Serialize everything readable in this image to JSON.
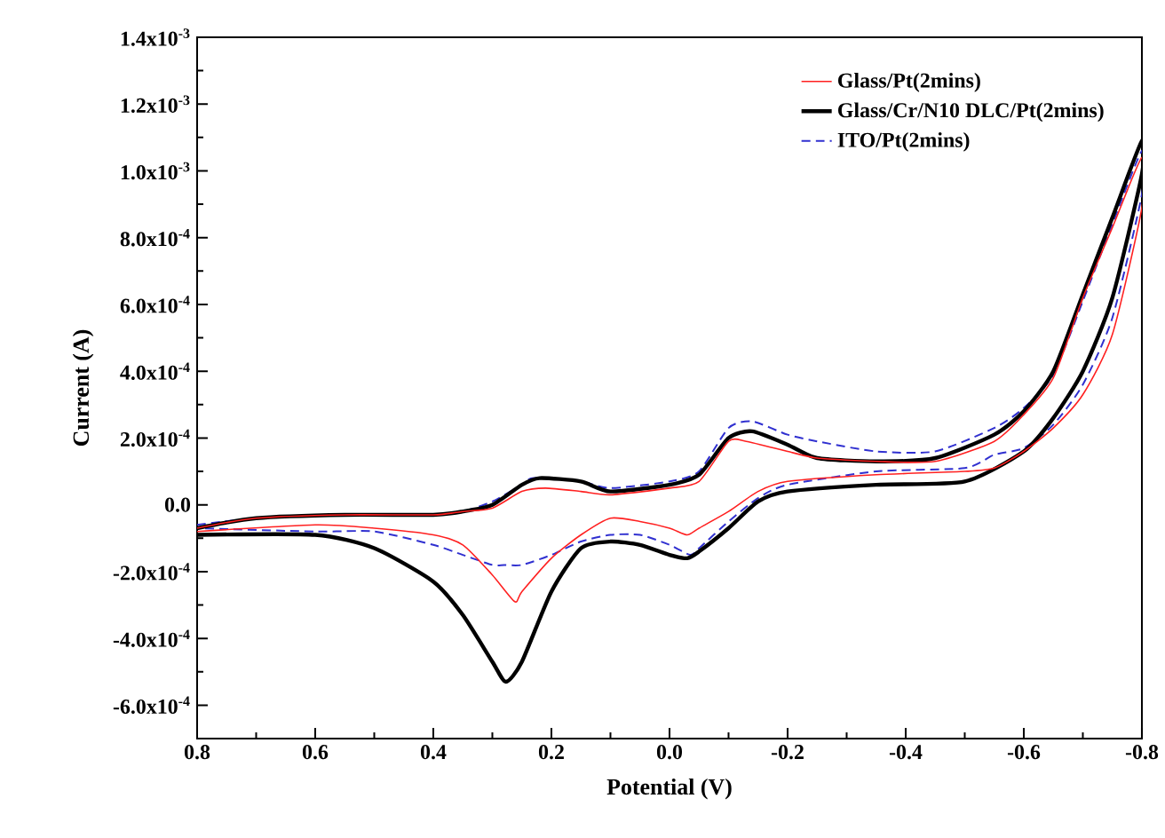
{
  "chart_data": {
    "type": "line",
    "xlabel": "Potential (V)",
    "ylabel": "Current (A)",
    "xlim": [
      0.8,
      -0.8
    ],
    "ylim": [
      -0.0007,
      0.0014
    ],
    "xticks": [
      {
        "value": 0.8,
        "label": "0.8"
      },
      {
        "value": 0.6,
        "label": "0.6"
      },
      {
        "value": 0.4,
        "label": "0.4"
      },
      {
        "value": 0.2,
        "label": "0.2"
      },
      {
        "value": 0.0,
        "label": "0.0"
      },
      {
        "value": -0.2,
        "label": "-0.2"
      },
      {
        "value": -0.4,
        "label": "-0.4"
      },
      {
        "value": -0.6,
        "label": "-0.6"
      },
      {
        "value": -0.8,
        "label": "-0.8"
      }
    ],
    "yticks": [
      {
        "value": -0.0006,
        "label": "-6.0x10$^{-4}$"
      },
      {
        "value": -0.0004,
        "label": "-4.0x10$^{-4}$"
      },
      {
        "value": -0.0002,
        "label": "-2.0x10$^{-4}$"
      },
      {
        "value": 0.0,
        "label": "0.0"
      },
      {
        "value": 0.0002,
        "label": "2.0x10$^{-4}$"
      },
      {
        "value": 0.0004,
        "label": "4.0x10$^{-4}$"
      },
      {
        "value": 0.0006,
        "label": "6.0x10$^{-4}$"
      },
      {
        "value": 0.0008,
        "label": "8.0x10$^{-4}$"
      },
      {
        "value": 0.001,
        "label": "1.0x10$^{-3}$"
      },
      {
        "value": 0.0012,
        "label": "1.2x10$^{-3}$"
      },
      {
        "value": 0.0014,
        "label": "1.4x10$^{-3}$"
      }
    ],
    "legend": "top right",
    "series": [
      {
        "name": "Glass/Pt(2mins)",
        "color": "#ff2020",
        "line_style": "solid",
        "x": [
          0.8,
          0.7,
          0.55,
          0.4,
          0.35,
          0.3,
          0.25,
          0.21,
          0.15,
          0.1,
          0.0,
          -0.05,
          -0.1,
          -0.13,
          -0.2,
          -0.25,
          -0.35,
          -0.45,
          -0.55,
          -0.6,
          -0.65,
          -0.7,
          -0.75,
          -0.8,
          -0.8,
          -0.75,
          -0.7,
          -0.65,
          -0.6,
          -0.55,
          -0.5,
          -0.35,
          -0.2,
          -0.15,
          -0.1,
          -0.05,
          -0.03,
          0.0,
          0.05,
          0.1,
          0.15,
          0.2,
          0.25,
          0.262,
          0.3,
          0.35,
          0.4,
          0.5,
          0.6,
          0.8
        ],
        "values": [
          -7e-05,
          -4e-05,
          -3e-05,
          -3e-05,
          -2e-05,
          -1e-05,
          4e-05,
          5e-05,
          4e-05,
          3e-05,
          5e-05,
          7e-05,
          0.00019,
          0.00019,
          0.00016,
          0.00014,
          0.00013,
          0.00013,
          0.00019,
          0.00027,
          0.00038,
          0.00062,
          0.00083,
          0.00104,
          0.00089,
          0.00051,
          0.00033,
          0.00023,
          0.00016,
          0.00011,
          0.0001,
          9e-05,
          7e-05,
          4e-05,
          -2e-05,
          -7e-05,
          -9e-05,
          -7e-05,
          -5e-05,
          -4e-05,
          -9e-05,
          -0.00016,
          -0.00026,
          -0.00029,
          -0.00021,
          -0.00012,
          -9e-05,
          -7e-05,
          -6e-05,
          -8e-05
        ]
      },
      {
        "name": "Glass/Cr/N10 DLC/Pt(2mins)",
        "color": "#000000",
        "line_style": "solid",
        "x": [
          0.8,
          0.7,
          0.55,
          0.4,
          0.35,
          0.3,
          0.25,
          0.22,
          0.15,
          0.1,
          0.0,
          -0.05,
          -0.1,
          -0.14,
          -0.2,
          -0.25,
          -0.35,
          -0.45,
          -0.55,
          -0.6,
          -0.65,
          -0.7,
          -0.75,
          -0.8,
          -0.8,
          -0.75,
          -0.7,
          -0.65,
          -0.6,
          -0.5,
          -0.35,
          -0.2,
          -0.15,
          -0.1,
          -0.05,
          -0.03,
          0.0,
          0.05,
          0.1,
          0.15,
          0.2,
          0.25,
          0.277,
          0.3,
          0.35,
          0.4,
          0.5,
          0.6,
          0.8
        ],
        "values": [
          -7e-05,
          -4e-05,
          -3e-05,
          -3e-05,
          -2e-05,
          0.0,
          6e-05,
          8e-05,
          7e-05,
          4e-05,
          6e-05,
          9e-05,
          0.0002,
          0.00022,
          0.00018,
          0.00014,
          0.00013,
          0.00014,
          0.00021,
          0.00028,
          0.0004,
          0.00063,
          0.00086,
          0.00109,
          0.00099,
          0.00062,
          0.0004,
          0.00026,
          0.00016,
          7e-05,
          6e-05,
          4e-05,
          1e-05,
          -7e-05,
          -0.00014,
          -0.00016,
          -0.00015,
          -0.00012,
          -0.00011,
          -0.00013,
          -0.00026,
          -0.00047,
          -0.00053,
          -0.00047,
          -0.00033,
          -0.00023,
          -0.00013,
          -9e-05,
          -9e-05
        ]
      },
      {
        "name": "ITO/Pt(2mins)",
        "color": "#3030d0",
        "line_style": "dashed",
        "x": [
          0.8,
          0.7,
          0.55,
          0.4,
          0.35,
          0.3,
          0.25,
          0.23,
          0.15,
          0.1,
          0.0,
          -0.05,
          -0.1,
          -0.14,
          -0.2,
          -0.25,
          -0.35,
          -0.45,
          -0.55,
          -0.6,
          -0.65,
          -0.7,
          -0.75,
          -0.8,
          -0.8,
          -0.75,
          -0.7,
          -0.65,
          -0.6,
          -0.55,
          -0.5,
          -0.35,
          -0.2,
          -0.15,
          -0.1,
          -0.05,
          -0.035,
          0.0,
          0.05,
          0.1,
          0.15,
          0.2,
          0.25,
          0.28,
          0.3,
          0.35,
          0.4,
          0.5,
          0.6,
          0.8
        ],
        "values": [
          -6e-05,
          -4e-05,
          -3e-05,
          -3e-05,
          -2e-05,
          1e-05,
          6e-05,
          8e-05,
          7e-05,
          5e-05,
          7e-05,
          0.0001,
          0.00023,
          0.00025,
          0.00021,
          0.00019,
          0.00016,
          0.00016,
          0.00023,
          0.00029,
          0.00039,
          0.00061,
          0.00084,
          0.00106,
          0.00093,
          0.00056,
          0.00036,
          0.00024,
          0.00017,
          0.00015,
          0.00011,
          0.0001,
          6e-05,
          2e-05,
          -5e-05,
          -0.00013,
          -0.00015,
          -0.00012,
          -9e-05,
          -9e-05,
          -0.00011,
          -0.00015,
          -0.00018,
          -0.00018,
          -0.00018,
          -0.00015,
          -0.00012,
          -8e-05,
          -8e-05,
          -7e-05
        ]
      }
    ]
  }
}
